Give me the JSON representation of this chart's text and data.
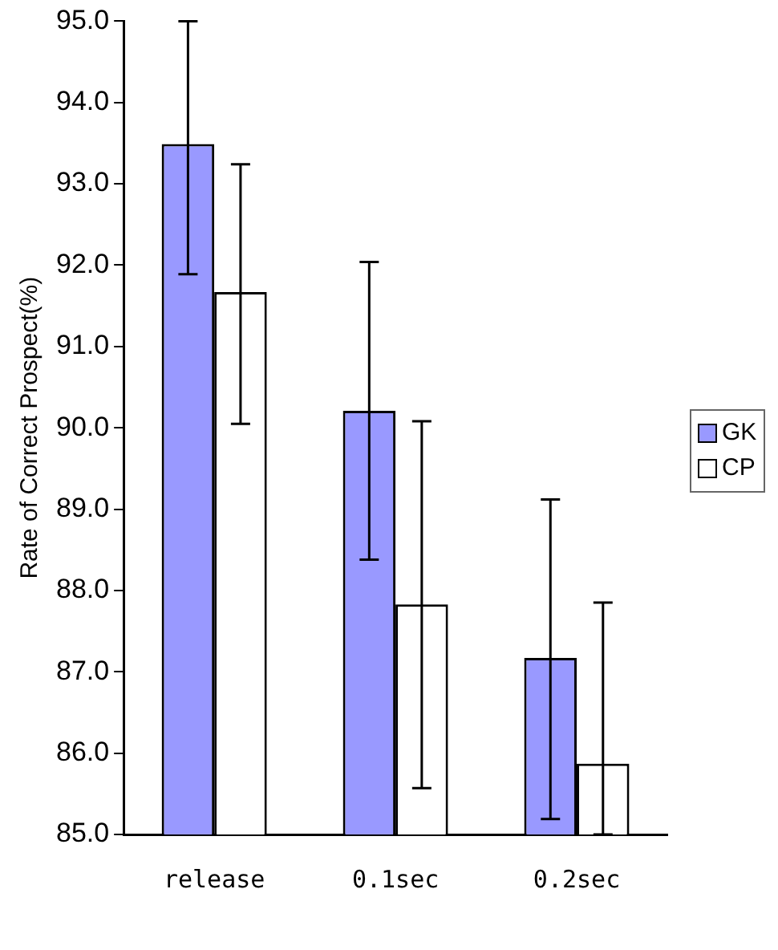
{
  "chart_data": {
    "type": "bar",
    "ylabel": "Rate of Correct Prospect(%)",
    "categories": [
      "release",
      "0.1sec",
      "0.2sec"
    ],
    "series": [
      {
        "name": "GK",
        "color": "#9999ff",
        "values": [
          93.49,
          90.21,
          87.17
        ],
        "errors": [
          [
            91.89,
            95
          ],
          [
            88.38,
            92.04
          ],
          [
            85.19,
            89.12
          ]
        ]
      },
      {
        "name": "CP",
        "color": "#ffffff",
        "values": [
          91.67,
          87.83,
          85.87
        ],
        "errors": [
          [
            90.05,
            93.24
          ],
          [
            85.57,
            90.08
          ],
          [
            85,
            87.85
          ]
        ]
      }
    ],
    "ylim": [
      85,
      95
    ],
    "yticks": [
      {
        "value": 85,
        "label": "85.0"
      },
      {
        "value": 86,
        "label": "86.0"
      },
      {
        "value": 87,
        "label": "87.0"
      },
      {
        "value": 88,
        "label": "88.0"
      },
      {
        "value": 89,
        "label": "89.0"
      },
      {
        "value": 90,
        "label": "90.0"
      },
      {
        "value": 91,
        "label": "91.0"
      },
      {
        "value": 92,
        "label": "92.0"
      },
      {
        "value": 93,
        "label": "93.0"
      },
      {
        "value": 94,
        "label": "94.0"
      },
      {
        "value": 95,
        "label": "95.0"
      }
    ],
    "grid": false,
    "legend": "right"
  }
}
